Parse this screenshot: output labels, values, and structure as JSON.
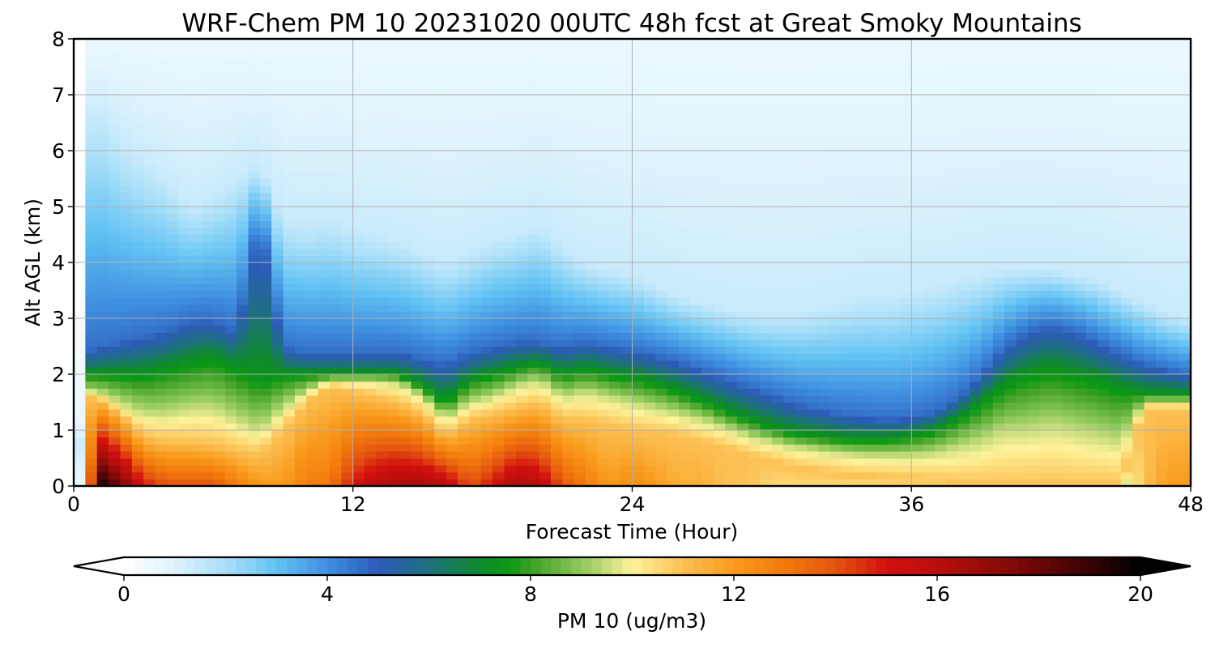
{
  "chart_data": {
    "type": "heatmap",
    "title": "WRF-Chem PM 10  20231020 00UTC 48h fcst at Great Smoky Mountains",
    "xlabel": "Forecast Time (Hour)",
    "ylabel": "Alt AGL (km)",
    "xlim": [
      0,
      48
    ],
    "ylim": [
      0,
      8
    ],
    "x_ticks": [
      0,
      12,
      24,
      36,
      48
    ],
    "y_ticks": [
      0,
      1,
      2,
      3,
      4,
      5,
      6,
      7,
      8
    ],
    "grid": true,
    "colorbar": {
      "label": "PM 10  (ug/m3)",
      "range": [
        0,
        20
      ],
      "ticks": [
        0,
        4,
        8,
        12,
        16,
        20
      ],
      "extend": "both",
      "orientation": "horizontal"
    },
    "colormap_stops": [
      {
        "v": 0,
        "color": "#ffffff"
      },
      {
        "v": 1,
        "color": "#dff3fd"
      },
      {
        "v": 2,
        "color": "#a9dff9"
      },
      {
        "v": 3,
        "color": "#62c2f3"
      },
      {
        "v": 4,
        "color": "#3f8fe0"
      },
      {
        "v": 5,
        "color": "#2c5bb8"
      },
      {
        "v": 6,
        "color": "#1e6f80"
      },
      {
        "v": 7,
        "color": "#0e8a2a"
      },
      {
        "v": 7.6,
        "color": "#0a9914"
      },
      {
        "v": 8,
        "color": "#3c9f24"
      },
      {
        "v": 9,
        "color": "#8fc95a"
      },
      {
        "v": 10,
        "color": "#fef29a"
      },
      {
        "v": 11,
        "color": "#fcc154"
      },
      {
        "v": 12,
        "color": "#f99a1c"
      },
      {
        "v": 13,
        "color": "#f27a0c"
      },
      {
        "v": 14,
        "color": "#e45410"
      },
      {
        "v": 15,
        "color": "#d2100e"
      },
      {
        "v": 16,
        "color": "#b80f0c"
      },
      {
        "v": 17,
        "color": "#930c0a"
      },
      {
        "v": 18,
        "color": "#6a0707"
      },
      {
        "v": 19,
        "color": "#360303"
      },
      {
        "v": 20,
        "color": "#000000"
      }
    ],
    "profiles": {
      "hours": [
        0,
        0.5,
        1,
        2,
        3,
        4,
        5,
        6,
        7,
        8,
        9,
        10,
        11,
        12,
        13,
        14,
        15,
        16,
        17,
        18,
        19,
        20,
        21,
        22,
        23,
        24,
        25,
        26,
        27,
        28,
        29,
        30,
        31,
        32,
        33,
        34,
        35,
        36,
        37,
        38,
        39,
        40,
        41,
        42,
        43,
        44,
        45,
        46,
        47,
        48
      ],
      "surface": [
        2,
        8,
        20,
        18,
        15,
        14,
        14,
        14,
        13,
        12,
        12,
        13,
        13,
        15,
        16,
        16.5,
        16.5,
        16,
        14,
        15,
        16.5,
        16,
        14,
        13,
        12,
        12.5,
        12,
        11.5,
        11.5,
        11,
        11,
        10.5,
        10.5,
        10.5,
        10.5,
        10.5,
        10.5,
        10.5,
        10.5,
        10,
        9.5,
        9,
        9,
        9,
        9,
        9,
        9,
        11,
        12,
        12
      ],
      "top_hi": [
        0,
        1.6,
        1.6,
        1.3,
        0.9,
        0.8,
        0.8,
        0.75,
        0.65,
        0.55,
        1.0,
        1.5,
        1.8,
        1.7,
        1.6,
        1.5,
        1.3,
        0.9,
        1.2,
        1.3,
        1.4,
        1.5,
        1.2,
        1.2,
        1.1,
        1.0,
        0.95,
        0.9,
        0.8,
        0.7,
        0.55,
        0.45,
        0.35,
        0.28,
        0.22,
        0.18,
        0.15,
        0.13,
        0.1,
        0.05,
        0,
        0,
        0,
        0,
        0,
        0,
        0,
        1.4,
        1.4,
        1.4
      ],
      "top_mid": [
        0,
        1.7,
        1.7,
        1.5,
        1.3,
        1.3,
        1.4,
        1.4,
        1.2,
        1.0,
        1.4,
        1.7,
        1.9,
        1.9,
        1.9,
        1.85,
        1.6,
        1.2,
        1.5,
        1.6,
        1.8,
        1.9,
        1.6,
        1.7,
        1.6,
        1.5,
        1.4,
        1.3,
        1.2,
        1.05,
        0.9,
        0.8,
        0.7,
        0.65,
        0.6,
        0.55,
        0.55,
        0.55,
        0.6,
        0.7,
        0.8,
        1.0,
        1.0,
        1.1,
        1.0,
        0.9,
        0.8,
        1.5,
        1.5,
        1.5
      ],
      "top_green": [
        0,
        2.0,
        2.0,
        2.0,
        2.0,
        2.1,
        2.2,
        2.3,
        2.1,
        1.9,
        2.0,
        2.0,
        2.0,
        2.0,
        2.0,
        2.0,
        1.8,
        1.5,
        1.9,
        2.0,
        2.1,
        2.2,
        2.0,
        2.1,
        2.0,
        1.95,
        1.85,
        1.7,
        1.55,
        1.35,
        1.2,
        1.05,
        0.95,
        0.9,
        0.85,
        0.85,
        0.85,
        0.9,
        1.0,
        1.2,
        1.5,
        1.8,
        2.0,
        2.1,
        2.0,
        1.9,
        1.75,
        1.65,
        1.65,
        1.65
      ],
      "top_blue": [
        0,
        2.4,
        2.5,
        2.6,
        2.7,
        2.8,
        3.0,
        3.0,
        2.8,
        4.8,
        2.5,
        2.4,
        2.4,
        2.4,
        2.4,
        2.4,
        2.3,
        2.2,
        2.4,
        2.5,
        2.6,
        2.6,
        2.5,
        2.6,
        2.5,
        2.45,
        2.35,
        2.25,
        2.1,
        1.95,
        1.8,
        1.65,
        1.5,
        1.4,
        1.3,
        1.25,
        1.2,
        1.25,
        1.35,
        1.6,
        2.0,
        2.5,
        2.8,
        2.9,
        2.8,
        2.6,
        2.4,
        2.2,
        2.1,
        2.0
      ],
      "top_light": [
        0,
        6.5,
        6.8,
        6.2,
        5.8,
        5.5,
        5.0,
        5.2,
        5.5,
        5.8,
        4.8,
        4.7,
        4.8,
        4.6,
        4.5,
        4.4,
        4.2,
        4.0,
        4.2,
        4.4,
        4.5,
        4.7,
        4.3,
        4.0,
        3.9,
        3.8,
        3.6,
        3.4,
        3.3,
        3.2,
        3.1,
        3.1,
        3.1,
        3.2,
        3.3,
        3.4,
        3.4,
        3.5,
        3.6,
        3.7,
        3.8,
        3.9,
        3.9,
        3.9,
        3.8,
        3.7,
        3.5,
        3.3,
        3.1,
        3.0
      ]
    }
  }
}
